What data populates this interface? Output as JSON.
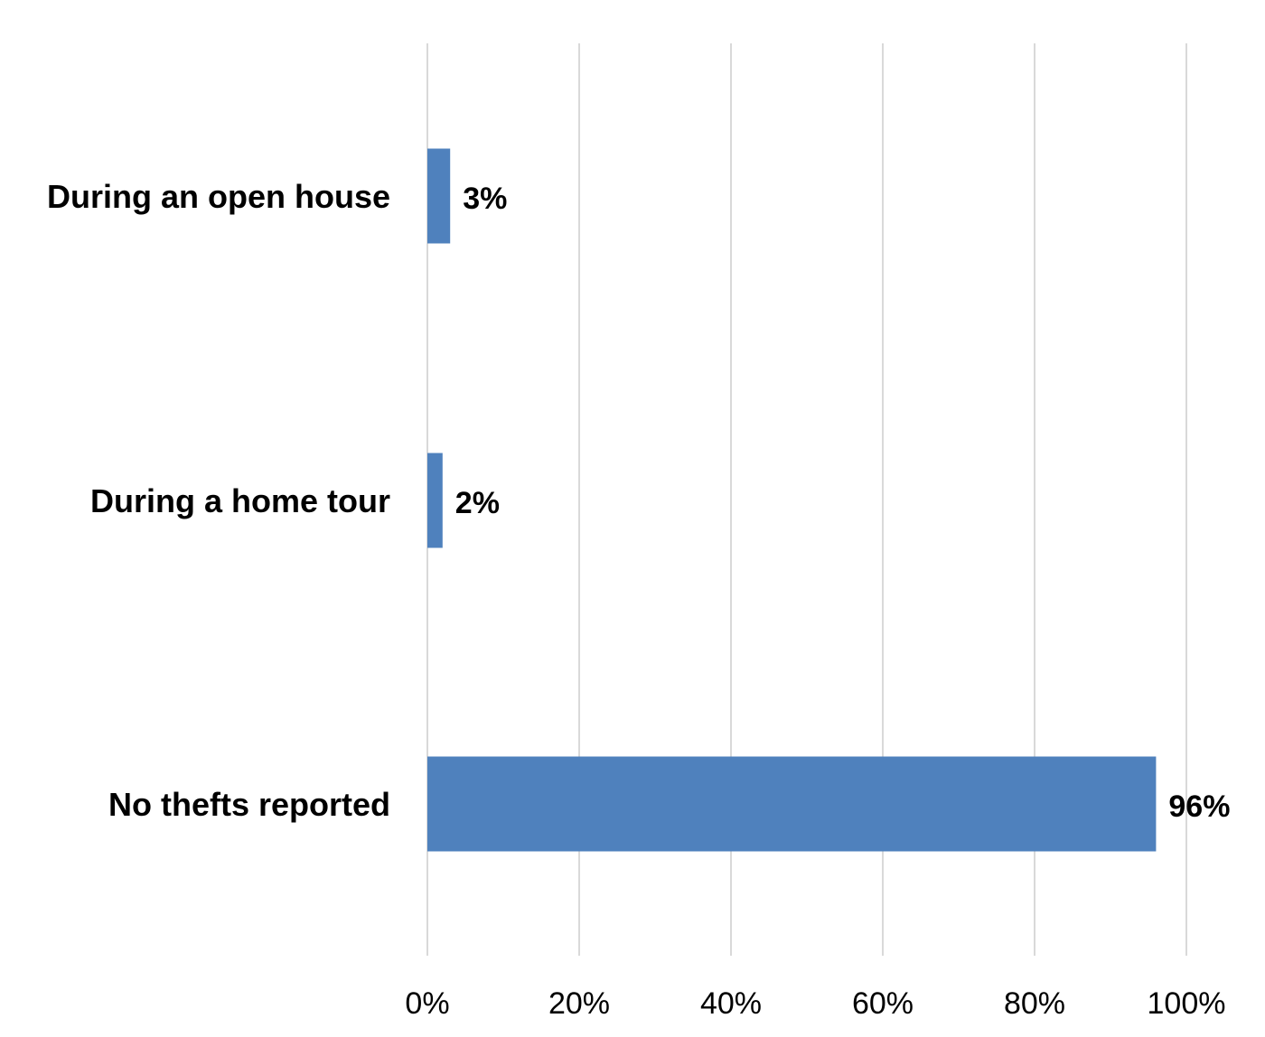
{
  "chart_data": {
    "type": "bar",
    "orientation": "horizontal",
    "categories": [
      "During an open house",
      "During a home tour",
      "No thefts reported"
    ],
    "values": [
      3,
      2,
      96
    ],
    "value_labels": [
      "3%",
      "2%",
      "96%"
    ],
    "title": "",
    "xlabel": "",
    "ylabel": "",
    "xlim": [
      0,
      100
    ],
    "x_ticks": [
      0,
      20,
      40,
      60,
      80,
      100
    ],
    "x_tick_labels": [
      "0%",
      "20%",
      "40%",
      "60%",
      "80%",
      "100%"
    ],
    "grid": true,
    "legend": "none",
    "bar_color": "#4f81bd",
    "gridline_color": "#d9d9d9"
  }
}
